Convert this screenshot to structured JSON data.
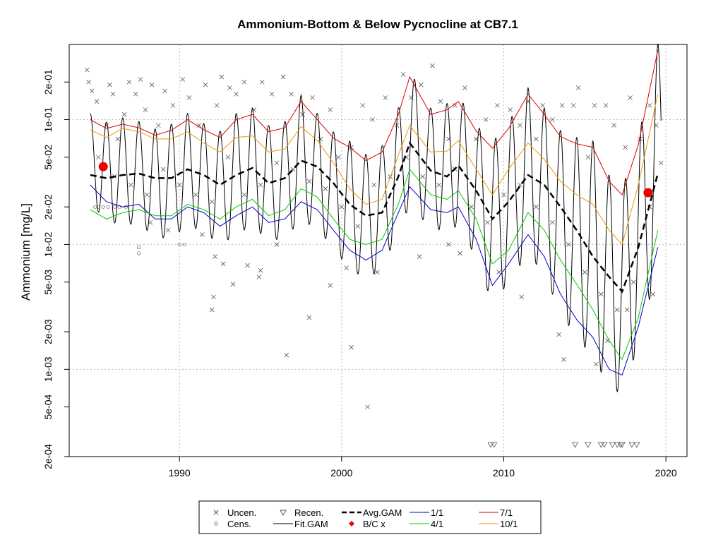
{
  "chart_data": {
    "type": "line",
    "title": "Ammonium-Bottom & Below Pycnocline at CB7.1",
    "ylabel": "Ammonium [mg/L]",
    "xlabel": "",
    "xlim": [
      1983.2,
      2021.3
    ],
    "ylim": [
      0.0002,
      0.4
    ],
    "y_scale": "log",
    "x_ticks": [
      1990,
      2000,
      2010,
      2020
    ],
    "y_ticks": [
      {
        "value": 0.0002,
        "label": "2e-04"
      },
      {
        "value": 0.0005,
        "label": "5e-04"
      },
      {
        "value": 0.001,
        "label": "1e-03"
      },
      {
        "value": 0.002,
        "label": "2e-03"
      },
      {
        "value": 0.005,
        "label": "5e-03"
      },
      {
        "value": 0.01,
        "label": "1e-02"
      },
      {
        "value": 0.02,
        "label": "2e-02"
      },
      {
        "value": 0.05,
        "label": "5e-02"
      },
      {
        "value": 0.1,
        "label": "1e-01"
      },
      {
        "value": 0.2,
        "label": "2e-01"
      }
    ],
    "grid": true,
    "legend_position": "bottom",
    "legend": [
      {
        "label": "Uncen.",
        "kind": "cross"
      },
      {
        "label": "Cens.",
        "kind": "circle"
      },
      {
        "label": "Recen.",
        "kind": "triangle-down"
      },
      {
        "label": "Fit.GAM",
        "kind": "line"
      },
      {
        "label": "Avg.GAM",
        "kind": "dashed"
      },
      {
        "label": "B/C x",
        "kind": "diamond"
      },
      {
        "label": "1/1",
        "kind": "line"
      },
      {
        "label": "4/1",
        "kind": "line"
      },
      {
        "label": "7/1",
        "kind": "line"
      },
      {
        "label": "10/1",
        "kind": "line"
      }
    ],
    "colors": {
      "uncen": "#555555",
      "cens": "#777777",
      "recen": "#555555",
      "fit": "#000000",
      "avg": "#000000",
      "bc": "#ee0000",
      "jan": "#0000cc",
      "apr": "#00cc00",
      "jul": "#dd0000",
      "oct": "#ee9900",
      "grid": "#bbbbbb"
    },
    "avg_gam": {
      "x": [
        1984.5,
        1985.5,
        1986.5,
        1987.5,
        1988.5,
        1989.5,
        1990.5,
        1991.5,
        1992.5,
        1993.5,
        1994.5,
        1995.5,
        1996.5,
        1997.5,
        1998.5,
        1999.5,
        2000.5,
        2001.5,
        2002.5,
        2003.5,
        2004.2,
        2005.5,
        2006.5,
        2007.2,
        2008.3,
        2009.3,
        2010.3,
        2011.5,
        2012.5,
        2013.5,
        2014.5,
        2015.5,
        2016.5,
        2017.3,
        2018.3,
        2019.5
      ],
      "y": [
        0.036,
        0.034,
        0.036,
        0.037,
        0.034,
        0.034,
        0.04,
        0.036,
        0.03,
        0.036,
        0.041,
        0.031,
        0.034,
        0.047,
        0.042,
        0.031,
        0.021,
        0.017,
        0.018,
        0.035,
        0.065,
        0.039,
        0.035,
        0.043,
        0.027,
        0.016,
        0.022,
        0.036,
        0.03,
        0.02,
        0.013,
        0.008,
        0.0055,
        0.0042,
        0.0095,
        0.037
      ]
    },
    "series": [
      {
        "name": "1/1",
        "x": [
          1984.5,
          1985.5,
          1986.5,
          1987.5,
          1988.5,
          1989.5,
          1990.5,
          1991.5,
          1992.5,
          1993.5,
          1994.5,
          1995.5,
          1996.5,
          1997.5,
          1998.5,
          1999.5,
          2000.5,
          2001.5,
          2002.5,
          2003.5,
          2004.2,
          2005.5,
          2006.5,
          2007.2,
          2008.3,
          2009.3,
          2010.3,
          2011.5,
          2012.5,
          2013.5,
          2014.5,
          2015.5,
          2016.5,
          2017.3,
          2018.3,
          2019.5
        ],
        "y": [
          0.03,
          0.022,
          0.02,
          0.021,
          0.016,
          0.016,
          0.02,
          0.018,
          0.014,
          0.017,
          0.02,
          0.015,
          0.016,
          0.022,
          0.019,
          0.013,
          0.009,
          0.0075,
          0.009,
          0.018,
          0.029,
          0.019,
          0.018,
          0.02,
          0.011,
          0.0047,
          0.007,
          0.012,
          0.008,
          0.004,
          0.0025,
          0.0018,
          0.001,
          0.0009,
          0.0022,
          0.0095
        ]
      },
      {
        "name": "4/1",
        "x": [
          1984.5,
          1985.5,
          1986.5,
          1987.5,
          1988.5,
          1989.5,
          1990.5,
          1991.5,
          1992.5,
          1993.5,
          1994.5,
          1995.5,
          1996.5,
          1997.5,
          1998.5,
          1999.5,
          2000.5,
          2001.5,
          2002.5,
          2003.5,
          2004.2,
          2005.5,
          2006.5,
          2007.2,
          2008.3,
          2009.3,
          2010.3,
          2011.5,
          2012.5,
          2013.5,
          2014.5,
          2015.5,
          2016.5,
          2017.3,
          2018.3,
          2019.5
        ],
        "y": [
          0.019,
          0.016,
          0.018,
          0.019,
          0.017,
          0.017,
          0.021,
          0.019,
          0.016,
          0.02,
          0.023,
          0.017,
          0.019,
          0.028,
          0.024,
          0.016,
          0.011,
          0.01,
          0.011,
          0.021,
          0.04,
          0.025,
          0.023,
          0.027,
          0.016,
          0.007,
          0.009,
          0.018,
          0.013,
          0.0075,
          0.0048,
          0.003,
          0.0017,
          0.0012,
          0.0026,
          0.013
        ]
      },
      {
        "name": "7/1",
        "x": [
          1984.5,
          1985.5,
          1986.5,
          1987.5,
          1988.5,
          1989.5,
          1990.5,
          1991.5,
          1992.5,
          1993.5,
          1994.5,
          1995.5,
          1996.5,
          1997.5,
          1998.5,
          1999.5,
          2000.5,
          2001.5,
          2002.5,
          2003.5,
          2004.2,
          2005.5,
          2006.5,
          2007.2,
          2008.3,
          2009.3,
          2010.3,
          2011.5,
          2012.5,
          2013.5,
          2014.5,
          2015.5,
          2016.5,
          2017.3,
          2018.3,
          2019.5
        ],
        "y": [
          0.1,
          0.085,
          0.092,
          0.086,
          0.075,
          0.082,
          0.1,
          0.083,
          0.072,
          0.1,
          0.11,
          0.08,
          0.086,
          0.14,
          0.1,
          0.071,
          0.06,
          0.047,
          0.055,
          0.11,
          0.22,
          0.11,
          0.12,
          0.14,
          0.081,
          0.059,
          0.085,
          0.16,
          0.11,
          0.073,
          0.064,
          0.06,
          0.032,
          0.025,
          0.063,
          0.36
        ]
      },
      {
        "name": "10/1",
        "x": [
          1984.5,
          1985.5,
          1986.5,
          1987.5,
          1988.5,
          1989.5,
          1990.5,
          1991.5,
          1992.5,
          1993.5,
          1994.5,
          1995.5,
          1996.5,
          1997.5,
          1998.5,
          1999.5,
          2000.5,
          2001.5,
          2002.5,
          2003.5,
          2004.2,
          2005.5,
          2006.5,
          2007.2,
          2008.3,
          2009.3,
          2010.3,
          2011.5,
          2012.5,
          2013.5,
          2014.5,
          2015.5,
          2016.5,
          2017.3,
          2018.3,
          2019.5
        ],
        "y": [
          0.083,
          0.072,
          0.085,
          0.08,
          0.07,
          0.07,
          0.08,
          0.065,
          0.055,
          0.072,
          0.074,
          0.055,
          0.058,
          0.088,
          0.068,
          0.045,
          0.028,
          0.021,
          0.023,
          0.052,
          0.09,
          0.055,
          0.056,
          0.068,
          0.04,
          0.025,
          0.04,
          0.065,
          0.048,
          0.032,
          0.025,
          0.021,
          0.013,
          0.01,
          0.03,
          0.16
        ]
      }
    ],
    "fit_gam": {
      "note": "seasonal fit oscillates annually between the lower (1/1) and upper (7/1) envelopes",
      "start": 1984.5,
      "end": 2019.7
    },
    "bc_points": [
      {
        "x": 1985.3,
        "y": 0.042
      },
      {
        "x": 2018.9,
        "y": 0.026
      }
    ],
    "recen_points": [
      {
        "x": 2009.2,
        "y": 0.00025
      },
      {
        "x": 2009.4,
        "y": 0.00025
      },
      {
        "x": 2014.4,
        "y": 0.00025
      },
      {
        "x": 2015.2,
        "y": 0.00025
      },
      {
        "x": 2016.0,
        "y": 0.00025
      },
      {
        "x": 2016.2,
        "y": 0.00025
      },
      {
        "x": 2016.7,
        "y": 0.00025
      },
      {
        "x": 2017.0,
        "y": 0.00025
      },
      {
        "x": 2017.2,
        "y": 0.00025
      },
      {
        "x": 2017.3,
        "y": 0.00025
      },
      {
        "x": 2017.9,
        "y": 0.00025
      },
      {
        "x": 2018.2,
        "y": 0.00025
      }
    ],
    "cens_points": [
      {
        "x": 1984.8,
        "y": 0.02
      },
      {
        "x": 1985.0,
        "y": 0.02
      },
      {
        "x": 1985.3,
        "y": 0.02
      },
      {
        "x": 1985.6,
        "y": 0.02
      },
      {
        "x": 1986.0,
        "y": 0.02
      },
      {
        "x": 1986.3,
        "y": 0.02
      },
      {
        "x": 1986.7,
        "y": 0.02
      },
      {
        "x": 1987.5,
        "y": 0.0095
      },
      {
        "x": 1987.5,
        "y": 0.0085
      },
      {
        "x": 1990.0,
        "y": 0.01
      },
      {
        "x": 1990.3,
        "y": 0.01
      }
    ],
    "uncen_points": [
      {
        "x": 1984.3,
        "y": 0.25
      },
      {
        "x": 1984.4,
        "y": 0.2
      },
      {
        "x": 1984.6,
        "y": 0.17
      },
      {
        "x": 1984.9,
        "y": 0.14
      },
      {
        "x": 1985.5,
        "y": 0.09
      },
      {
        "x": 1985.7,
        "y": 0.19
      },
      {
        "x": 1985.9,
        "y": 0.16
      },
      {
        "x": 1986.2,
        "y": 0.07
      },
      {
        "x": 1986.6,
        "y": 0.11
      },
      {
        "x": 1986.9,
        "y": 0.2
      },
      {
        "x": 1987.3,
        "y": 0.16
      },
      {
        "x": 1987.6,
        "y": 0.21
      },
      {
        "x": 1987.9,
        "y": 0.12
      },
      {
        "x": 1988.3,
        "y": 0.19
      },
      {
        "x": 1988.7,
        "y": 0.09
      },
      {
        "x": 1989.1,
        "y": 0.17
      },
      {
        "x": 1989.6,
        "y": 0.13
      },
      {
        "x": 1990.2,
        "y": 0.21
      },
      {
        "x": 1990.6,
        "y": 0.15
      },
      {
        "x": 1991.2,
        "y": 0.09
      },
      {
        "x": 1991.6,
        "y": 0.19
      },
      {
        "x": 1992.3,
        "y": 0.13
      },
      {
        "x": 1992.6,
        "y": 0.22
      },
      {
        "x": 1993.1,
        "y": 0.18
      },
      {
        "x": 1993.5,
        "y": 0.16
      },
      {
        "x": 1994.0,
        "y": 0.2
      },
      {
        "x": 1994.6,
        "y": 0.12
      },
      {
        "x": 1995.1,
        "y": 0.2
      },
      {
        "x": 1995.7,
        "y": 0.16
      },
      {
        "x": 1996.4,
        "y": 0.22
      },
      {
        "x": 1996.9,
        "y": 0.16
      },
      {
        "x": 1997.6,
        "y": 0.11
      },
      {
        "x": 1998.2,
        "y": 0.15
      },
      {
        "x": 1998.7,
        "y": 0.07
      },
      {
        "x": 1999.3,
        "y": 0.12
      },
      {
        "x": 1999.8,
        "y": 0.05
      },
      {
        "x": 2000.6,
        "y": 0.06
      },
      {
        "x": 2001.3,
        "y": 0.13
      },
      {
        "x": 2001.9,
        "y": 0.1
      },
      {
        "x": 2002.7,
        "y": 0.15
      },
      {
        "x": 2003.4,
        "y": 0.09
      },
      {
        "x": 2003.8,
        "y": 0.23
      },
      {
        "x": 2004.3,
        "y": 0.15
      },
      {
        "x": 2004.9,
        "y": 0.19
      },
      {
        "x": 2005.6,
        "y": 0.27
      },
      {
        "x": 2006.1,
        "y": 0.14
      },
      {
        "x": 2006.6,
        "y": 0.07
      },
      {
        "x": 2007.0,
        "y": 0.13
      },
      {
        "x": 2007.6,
        "y": 0.18
      },
      {
        "x": 2008.3,
        "y": 0.07
      },
      {
        "x": 2008.9,
        "y": 0.1
      },
      {
        "x": 2009.6,
        "y": 0.13
      },
      {
        "x": 2010.4,
        "y": 0.12
      },
      {
        "x": 2011.0,
        "y": 0.09
      },
      {
        "x": 2011.5,
        "y": 0.14
      },
      {
        "x": 2012.0,
        "y": 0.07
      },
      {
        "x": 2012.4,
        "y": 0.13
      },
      {
        "x": 2013.0,
        "y": 0.1
      },
      {
        "x": 2013.6,
        "y": 0.13
      },
      {
        "x": 2014.3,
        "y": 0.13
      },
      {
        "x": 2014.6,
        "y": 0.18
      },
      {
        "x": 2015.2,
        "y": 0.05
      },
      {
        "x": 2015.6,
        "y": 0.13
      },
      {
        "x": 2016.3,
        "y": 0.13
      },
      {
        "x": 2016.8,
        "y": 0.09
      },
      {
        "x": 2017.5,
        "y": 0.06
      },
      {
        "x": 2017.8,
        "y": 0.15
      },
      {
        "x": 2018.4,
        "y": 0.07
      },
      {
        "x": 2019.0,
        "y": 0.13
      },
      {
        "x": 2019.4,
        "y": 0.09
      },
      {
        "x": 1985.0,
        "y": 0.05
      },
      {
        "x": 1986.0,
        "y": 0.035
      },
      {
        "x": 1987.0,
        "y": 0.03
      },
      {
        "x": 1988.0,
        "y": 0.025
      },
      {
        "x": 1989.0,
        "y": 0.04
      },
      {
        "x": 1990.0,
        "y": 0.03
      },
      {
        "x": 1991.0,
        "y": 0.025
      },
      {
        "x": 1992.0,
        "y": 0.022
      },
      {
        "x": 1993.0,
        "y": 0.05
      },
      {
        "x": 1994.0,
        "y": 0.025
      },
      {
        "x": 1995.0,
        "y": 0.03
      },
      {
        "x": 1996.0,
        "y": 0.045
      },
      {
        "x": 1997.0,
        "y": 0.04
      },
      {
        "x": 1998.0,
        "y": 0.032
      },
      {
        "x": 1999.0,
        "y": 0.028
      },
      {
        "x": 2000.0,
        "y": 0.02
      },
      {
        "x": 2001.0,
        "y": 0.014
      },
      {
        "x": 2002.0,
        "y": 0.03
      },
      {
        "x": 2003.0,
        "y": 0.035
      },
      {
        "x": 2004.0,
        "y": 0.05
      },
      {
        "x": 2005.0,
        "y": 0.035
      },
      {
        "x": 2006.0,
        "y": 0.03
      },
      {
        "x": 2007.0,
        "y": 0.04
      },
      {
        "x": 2008.0,
        "y": 0.02
      },
      {
        "x": 2009.0,
        "y": 0.015
      },
      {
        "x": 2010.0,
        "y": 0.025
      },
      {
        "x": 2011.0,
        "y": 0.03
      },
      {
        "x": 2012.0,
        "y": 0.02
      },
      {
        "x": 2013.0,
        "y": 0.015
      },
      {
        "x": 2014.0,
        "y": 0.01
      },
      {
        "x": 2015.0,
        "y": 0.006
      },
      {
        "x": 2016.0,
        "y": 0.004
      },
      {
        "x": 2017.0,
        "y": 0.003
      },
      {
        "x": 2018.0,
        "y": 0.005
      },
      {
        "x": 2019.0,
        "y": 0.02
      },
      {
        "x": 2019.7,
        "y": 0.045
      },
      {
        "x": 1988.2,
        "y": 0.015
      },
      {
        "x": 1989.3,
        "y": 0.013
      },
      {
        "x": 1991.4,
        "y": 0.012
      },
      {
        "x": 1992.2,
        "y": 0.008
      },
      {
        "x": 1992.7,
        "y": 0.007
      },
      {
        "x": 1993.3,
        "y": 0.0048
      },
      {
        "x": 1994.2,
        "y": 0.0068
      },
      {
        "x": 1994.9,
        "y": 0.0055
      },
      {
        "x": 1995.0,
        "y": 0.0062
      },
      {
        "x": 1996.0,
        "y": 0.01
      },
      {
        "x": 1992.1,
        "y": 0.0038
      },
      {
        "x": 1992.0,
        "y": 0.003
      },
      {
        "x": 1996.6,
        "y": 0.0013
      },
      {
        "x": 1998.0,
        "y": 0.0026
      },
      {
        "x": 1999.3,
        "y": 0.0047
      },
      {
        "x": 2000.3,
        "y": 0.0065
      },
      {
        "x": 2000.6,
        "y": 0.0015
      },
      {
        "x": 2001.6,
        "y": 0.0005
      },
      {
        "x": 2002.2,
        "y": 0.006
      },
      {
        "x": 2004.8,
        "y": 0.008
      },
      {
        "x": 2006.6,
        "y": 0.01
      },
      {
        "x": 2007.3,
        "y": 0.0085
      },
      {
        "x": 2009.7,
        "y": 0.006
      },
      {
        "x": 2011.1,
        "y": 0.0038
      },
      {
        "x": 2013.4,
        "y": 0.0019
      },
      {
        "x": 2013.7,
        "y": 0.0012
      },
      {
        "x": 2015.7,
        "y": 0.0011
      },
      {
        "x": 2016.4,
        "y": 0.0017
      },
      {
        "x": 2017.6,
        "y": 0.003
      },
      {
        "x": 2019.2,
        "y": 0.004
      }
    ]
  }
}
